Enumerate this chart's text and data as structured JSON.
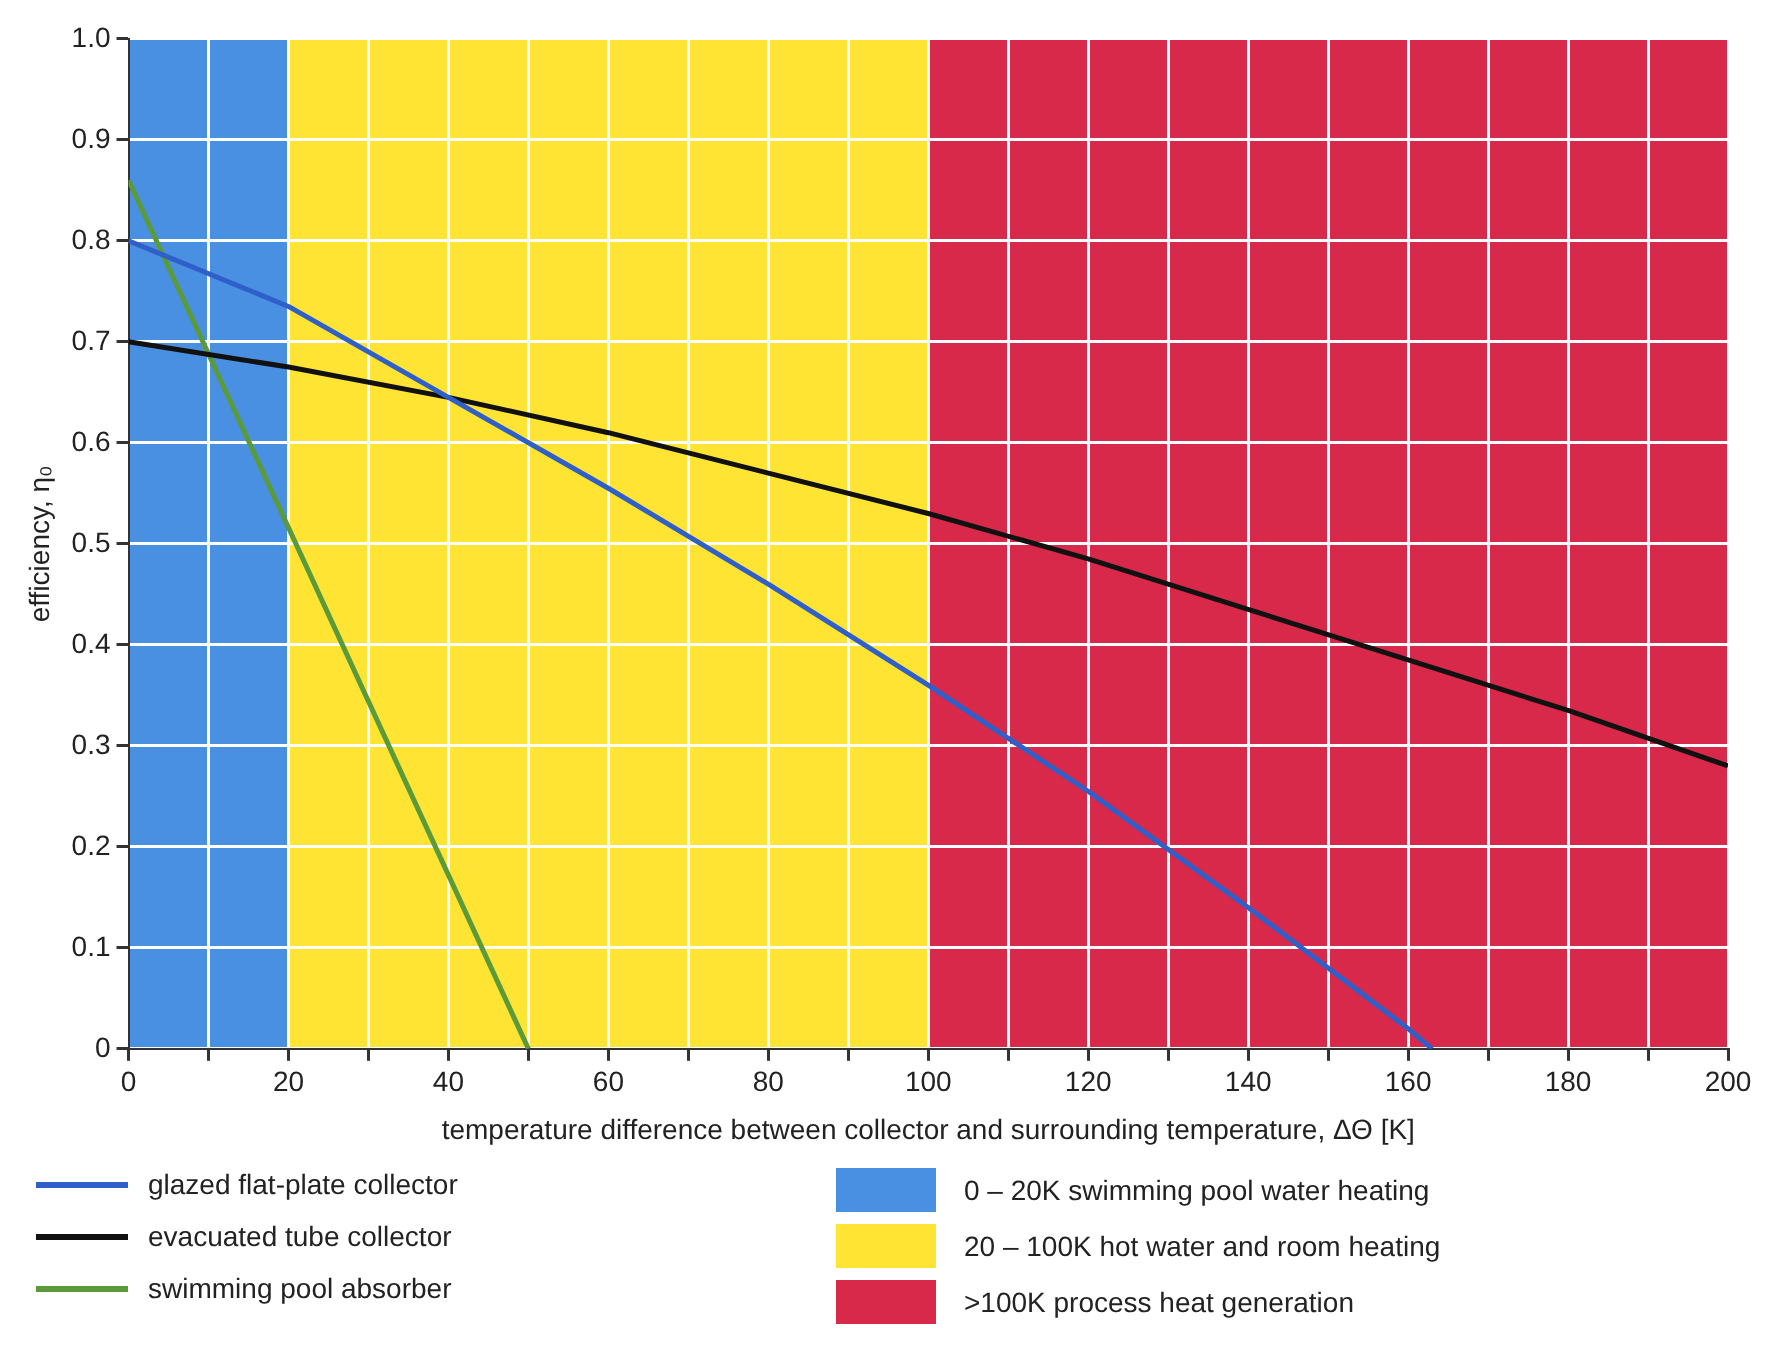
{
  "chart_data": {
    "type": "line",
    "xlabel": "temperature difference between collector and surrounding temperature, ΔΘ [K]",
    "ylabel": "efficiency, η₀",
    "xlim": [
      0,
      200
    ],
    "xticks": [
      0,
      {
        "value": 10,
        "label": null
      },
      20,
      {
        "value": 30,
        "label": null
      },
      40,
      {
        "value": 50,
        "label": null
      },
      60,
      {
        "value": 70,
        "label": null
      },
      80,
      {
        "value": 90,
        "label": null
      },
      100,
      {
        "value": 110,
        "label": null
      },
      120,
      {
        "value": 130,
        "label": null
      },
      140,
      {
        "value": 150,
        "label": null
      },
      160,
      {
        "value": 170,
        "label": null
      },
      180,
      {
        "value": 190,
        "label": null
      },
      200
    ],
    "ylim": [
      0,
      1
    ],
    "yticks": [
      0,
      0.1,
      0.2,
      0.3,
      0.4,
      0.5,
      0.6,
      0.7,
      0.8,
      0.9,
      {
        "value": 1,
        "label": "1.0"
      }
    ],
    "grid": true,
    "legend": "bottom",
    "marker": "none",
    "line_style": "solid",
    "series": [
      {
        "name": "glazed flat-plate collector",
        "color": "#2f5fc8",
        "x": [
          0,
          20,
          40,
          60,
          80,
          100,
          120,
          140,
          160,
          163
        ],
        "values": [
          0.8,
          0.735,
          0.645,
          0.555,
          0.46,
          0.36,
          0.255,
          0.14,
          0.02,
          0
        ]
      },
      {
        "name": "evacuated tube collector",
        "color": "#111111",
        "x": [
          0,
          20,
          40,
          60,
          80,
          100,
          120,
          140,
          160,
          180,
          200
        ],
        "values": [
          0.7,
          0.675,
          0.645,
          0.61,
          0.57,
          0.53,
          0.485,
          0.435,
          0.385,
          0.335,
          0.28
        ]
      },
      {
        "name": "swimming pool absorber",
        "color": "#5a9a3a",
        "x": [
          0,
          50
        ],
        "values": [
          0.86,
          0
        ]
      }
    ],
    "bands": [
      {
        "axis": "x",
        "from": 0,
        "to": 20,
        "label": "0 – 20K swimming pool water heating",
        "color": "#4a90e2"
      },
      {
        "axis": "x",
        "from": 20,
        "to": 100,
        "label": "20 – 100K hot water and room heating",
        "color": "#ffe433"
      },
      {
        "axis": "x",
        "from": 100,
        "to": 200,
        "label": ">100K process heat generation",
        "color": "#d8294a"
      }
    ]
  }
}
